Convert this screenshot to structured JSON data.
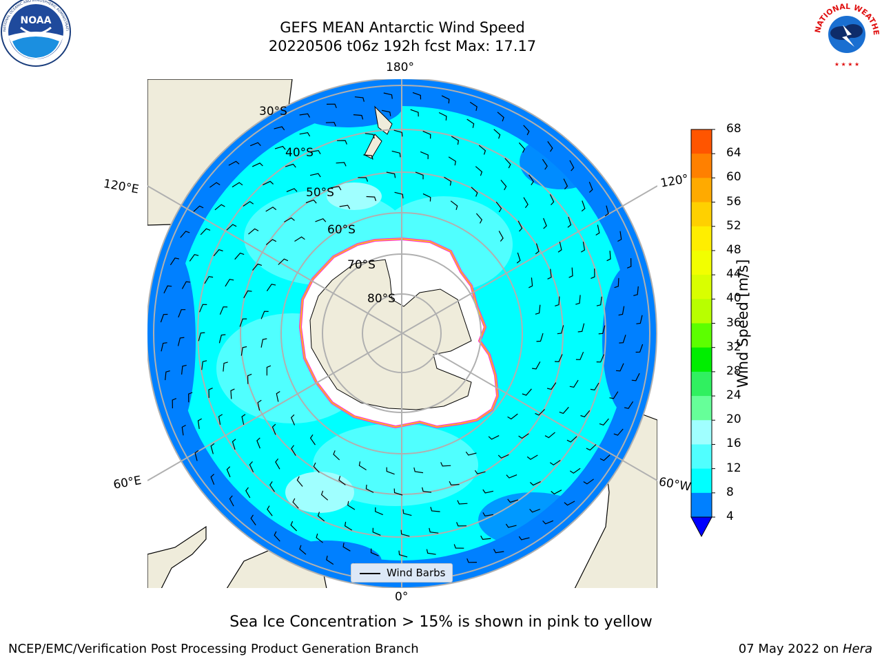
{
  "title": {
    "line1": "GEFS MEAN Antarctic Wind Speed",
    "line2": "20220506 t06z 192h fcst   Max: 17.17"
  },
  "logos": {
    "left": "NOAA",
    "right_ring_text": "NATIONAL WEATHER SERVICE"
  },
  "map": {
    "projection": "south-polar-stereographic",
    "longitude_labels": {
      "top": "180°",
      "bottom": "0°",
      "left_upper": "120°E",
      "left_lower": "60°E",
      "right_upper": "120°",
      "right_lower": "60°W"
    },
    "latitude_labels": [
      "30°S",
      "40°S",
      "50°S",
      "60°S",
      "70°S",
      "80°S"
    ],
    "legend_label": "Wind Barbs"
  },
  "colorbar": {
    "label": "Wind Speed [m/s]",
    "ticks": [
      "68",
      "64",
      "60",
      "56",
      "52",
      "48",
      "44",
      "40",
      "36",
      "32",
      "28",
      "24",
      "20",
      "16",
      "12",
      "8",
      "4"
    ],
    "colors": [
      "#ff0000",
      "#ff2a00",
      "#ff5500",
      "#ff8000",
      "#ffaa00",
      "#ffd000",
      "#ffee00",
      "#f2ff00",
      "#d9ff00",
      "#b8ff00",
      "#5cff00",
      "#00ee00",
      "#30f060",
      "#66ff99",
      "#a0ffff",
      "#50ffff",
      "#00ffff",
      "#0080ff",
      "#0000ff"
    ]
  },
  "caption": "Sea Ice Concentration > 15% is shown in pink to yellow",
  "footer": {
    "left": "NCEP/EMC/Verification Post Processing Product Generation Branch",
    "right_prefix": "07 May 2022 on ",
    "right_host": "Hera"
  }
}
